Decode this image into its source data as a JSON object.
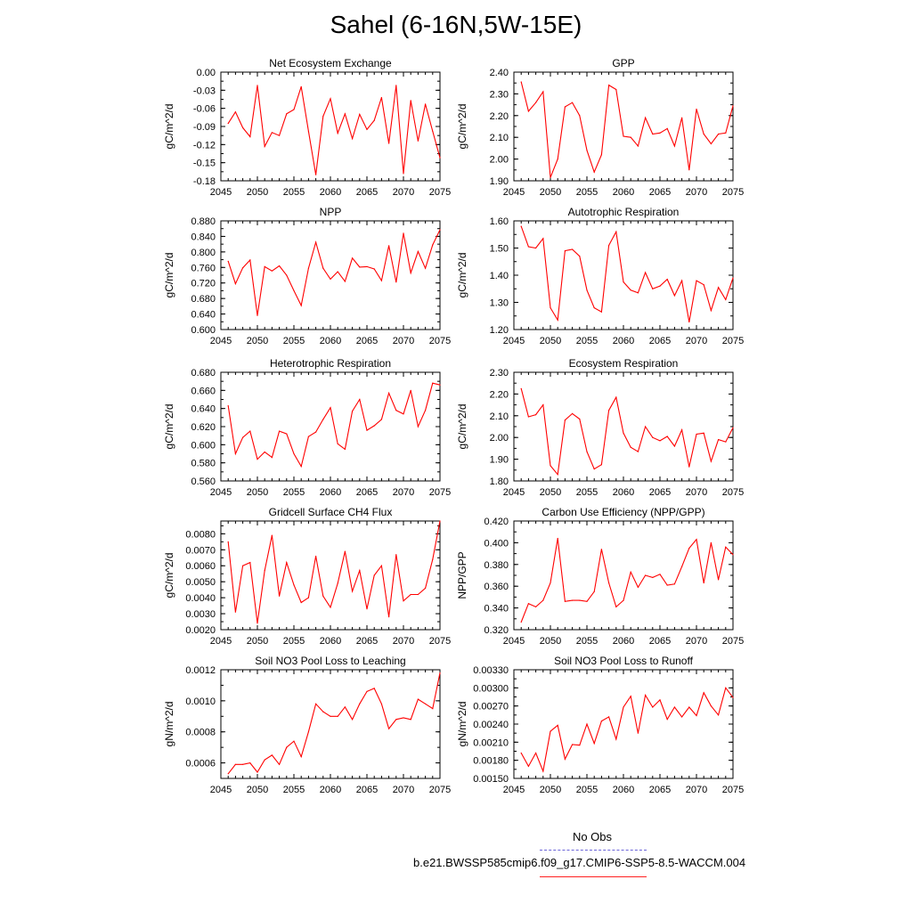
{
  "title": "Sahel (6-16N,5W-15E)",
  "legend": {
    "obs_label": "No Obs",
    "model_label": "b.e21.BWSSP585cmip6.f09_g17.CMIP6-SSP5-8.5-WACCM.004",
    "obs_color": "#6a64d8",
    "model_color": "#ff0000"
  },
  "chart_data": [
    {
      "type": "line",
      "title": "Net Ecosystem Exchange",
      "ylabel": "gC/m^2/d",
      "xlim": [
        2045,
        2075
      ],
      "xticks": [
        "2045",
        "2050",
        "2055",
        "2060",
        "2065",
        "2070",
        "2075"
      ],
      "ylim": [
        -0.18,
        0.0
      ],
      "yticks": [
        "0.00",
        "-0.03",
        "-0.06",
        "-0.09",
        "-0.12",
        "-0.15",
        "-0.18"
      ],
      "x": [
        2046,
        2047,
        2048,
        2049,
        2050,
        2051,
        2052,
        2053,
        2054,
        2055,
        2056,
        2057,
        2058,
        2059,
        2060,
        2061,
        2062,
        2063,
        2064,
        2065,
        2066,
        2067,
        2068,
        2069,
        2070,
        2071,
        2072,
        2073,
        2074,
        2075
      ],
      "series": [
        {
          "name": "b.e21.BWSSP585cmip6.f09_g17.CMIP6-SSP5-8.5-WACCM.004",
          "values": [
            -0.085,
            -0.066,
            -0.092,
            -0.107,
            -0.022,
            -0.123,
            -0.1,
            -0.105,
            -0.069,
            -0.062,
            -0.024,
            -0.098,
            -0.17,
            -0.073,
            -0.044,
            -0.101,
            -0.069,
            -0.11,
            -0.07,
            -0.095,
            -0.08,
            -0.042,
            -0.118,
            -0.022,
            -0.168,
            -0.047,
            -0.114,
            -0.053,
            -0.098,
            -0.142
          ]
        }
      ]
    },
    {
      "type": "line",
      "title": "GPP",
      "ylabel": "gC/m^2/d",
      "xlim": [
        2045,
        2075
      ],
      "xticks": [
        "2045",
        "2050",
        "2055",
        "2060",
        "2065",
        "2070",
        "2075"
      ],
      "ylim": [
        1.9,
        2.4
      ],
      "yticks": [
        "2.40",
        "2.30",
        "2.20",
        "2.10",
        "2.00",
        "1.90"
      ],
      "x": [
        2046,
        2047,
        2048,
        2049,
        2050,
        2051,
        2052,
        2053,
        2054,
        2055,
        2056,
        2057,
        2058,
        2059,
        2060,
        2061,
        2062,
        2063,
        2064,
        2065,
        2066,
        2067,
        2068,
        2069,
        2070,
        2071,
        2072,
        2073,
        2074,
        2075
      ],
      "series": [
        {
          "name": "b.e21.BWSSP585cmip6.f09_g17.CMIP6-SSP5-8.5-WACCM.004",
          "values": [
            2.355,
            2.22,
            2.26,
            2.31,
            1.915,
            2.0,
            2.24,
            2.26,
            2.2,
            2.04,
            1.94,
            2.02,
            2.34,
            2.32,
            2.105,
            2.1,
            2.06,
            2.19,
            2.115,
            2.12,
            2.14,
            2.06,
            2.19,
            1.95,
            2.23,
            2.115,
            2.07,
            2.115,
            2.12,
            2.245
          ]
        }
      ]
    },
    {
      "type": "line",
      "title": "NPP",
      "ylabel": "gC/m^2/d",
      "xlim": [
        2045,
        2075
      ],
      "xticks": [
        "2045",
        "2050",
        "2055",
        "2060",
        "2065",
        "2070",
        "2075"
      ],
      "ylim": [
        0.6,
        0.88
      ],
      "yticks": [
        "0.880",
        "0.840",
        "0.800",
        "0.760",
        "0.720",
        "0.680",
        "0.640",
        "0.600"
      ],
      "x": [
        2046,
        2047,
        2048,
        2049,
        2050,
        2051,
        2052,
        2053,
        2054,
        2055,
        2056,
        2057,
        2058,
        2059,
        2060,
        2061,
        2062,
        2063,
        2064,
        2065,
        2066,
        2067,
        2068,
        2069,
        2070,
        2071,
        2072,
        2073,
        2074,
        2075
      ],
      "series": [
        {
          "name": "b.e21.BWSSP585cmip6.f09_g17.CMIP6-SSP5-8.5-WACCM.004",
          "values": [
            0.776,
            0.718,
            0.759,
            0.779,
            0.636,
            0.762,
            0.751,
            0.764,
            0.74,
            0.7,
            0.662,
            0.758,
            0.825,
            0.758,
            0.73,
            0.749,
            0.724,
            0.784,
            0.761,
            0.762,
            0.756,
            0.726,
            0.816,
            0.722,
            0.848,
            0.746,
            0.801,
            0.758,
            0.818,
            0.857
          ]
        }
      ]
    },
    {
      "type": "line",
      "title": "Autotrophic Respiration",
      "ylabel": "gC/m^2/d",
      "xlim": [
        2045,
        2075
      ],
      "xticks": [
        "2045",
        "2050",
        "2055",
        "2060",
        "2065",
        "2070",
        "2075"
      ],
      "ylim": [
        1.2,
        1.6
      ],
      "yticks": [
        "1.60",
        "1.50",
        "1.40",
        "1.30",
        "1.20"
      ],
      "x": [
        2046,
        2047,
        2048,
        2049,
        2050,
        2051,
        2052,
        2053,
        2054,
        2055,
        2056,
        2057,
        2058,
        2059,
        2060,
        2061,
        2062,
        2063,
        2064,
        2065,
        2066,
        2067,
        2068,
        2069,
        2070,
        2071,
        2072,
        2073,
        2074,
        2075
      ],
      "series": [
        {
          "name": "b.e21.BWSSP585cmip6.f09_g17.CMIP6-SSP5-8.5-WACCM.004",
          "values": [
            1.58,
            1.505,
            1.5,
            1.535,
            1.28,
            1.235,
            1.49,
            1.495,
            1.47,
            1.345,
            1.28,
            1.265,
            1.51,
            1.56,
            1.375,
            1.345,
            1.335,
            1.41,
            1.35,
            1.36,
            1.385,
            1.325,
            1.38,
            1.228,
            1.38,
            1.365,
            1.27,
            1.355,
            1.31,
            1.39
          ]
        }
      ]
    },
    {
      "type": "line",
      "title": "Heterotrophic Respiration",
      "ylabel": "gC/m^2/d",
      "xlim": [
        2045,
        2075
      ],
      "xticks": [
        "2045",
        "2050",
        "2055",
        "2060",
        "2065",
        "2070",
        "2075"
      ],
      "ylim": [
        0.56,
        0.68
      ],
      "yticks": [
        "0.680",
        "0.660",
        "0.640",
        "0.620",
        "0.600",
        "0.580",
        "0.560"
      ],
      "x": [
        2046,
        2047,
        2048,
        2049,
        2050,
        2051,
        2052,
        2053,
        2054,
        2055,
        2056,
        2057,
        2058,
        2059,
        2060,
        2061,
        2062,
        2063,
        2064,
        2065,
        2066,
        2067,
        2068,
        2069,
        2070,
        2071,
        2072,
        2073,
        2074,
        2075
      ],
      "series": [
        {
          "name": "b.e21.BWSSP585cmip6.f09_g17.CMIP6-SSP5-8.5-WACCM.004",
          "values": [
            0.643,
            0.59,
            0.608,
            0.615,
            0.584,
            0.592,
            0.586,
            0.615,
            0.612,
            0.59,
            0.576,
            0.609,
            0.614,
            0.628,
            0.641,
            0.601,
            0.595,
            0.637,
            0.65,
            0.616,
            0.621,
            0.628,
            0.657,
            0.638,
            0.634,
            0.66,
            0.62,
            0.638,
            0.668,
            0.666
          ]
        }
      ]
    },
    {
      "type": "line",
      "title": "Ecosystem Respiration",
      "ylabel": "gC/m^2/d",
      "xlim": [
        2045,
        2075
      ],
      "xticks": [
        "2045",
        "2050",
        "2055",
        "2060",
        "2065",
        "2070",
        "2075"
      ],
      "ylim": [
        1.8,
        2.3
      ],
      "yticks": [
        "2.30",
        "2.20",
        "2.10",
        "2.00",
        "1.90",
        "1.80"
      ],
      "x": [
        2046,
        2047,
        2048,
        2049,
        2050,
        2051,
        2052,
        2053,
        2054,
        2055,
        2056,
        2057,
        2058,
        2059,
        2060,
        2061,
        2062,
        2063,
        2064,
        2065,
        2066,
        2067,
        2068,
        2069,
        2070,
        2071,
        2072,
        2073,
        2074,
        2075
      ],
      "series": [
        {
          "name": "b.e21.BWSSP585cmip6.f09_g17.CMIP6-SSP5-8.5-WACCM.004",
          "values": [
            2.225,
            2.095,
            2.105,
            2.15,
            1.87,
            1.83,
            2.08,
            2.11,
            2.085,
            1.935,
            1.855,
            1.875,
            2.125,
            2.185,
            2.02,
            1.955,
            1.935,
            2.05,
            2.0,
            1.985,
            2.005,
            1.96,
            2.035,
            1.865,
            2.015,
            2.02,
            1.89,
            1.99,
            1.98,
            2.045
          ]
        }
      ]
    },
    {
      "type": "line",
      "title": "Gridcell Surface CH4 Flux",
      "ylabel": "gC/m^2/d",
      "xlim": [
        2045,
        2075
      ],
      "xticks": [
        "2045",
        "2050",
        "2055",
        "2060",
        "2065",
        "2070",
        "2075"
      ],
      "ylim": [
        0.002,
        0.0088
      ],
      "yticks": [
        "0.0080",
        "0.0070",
        "0.0060",
        "0.0050",
        "0.0040",
        "0.0030",
        "0.0020"
      ],
      "x": [
        2046,
        2047,
        2048,
        2049,
        2050,
        2051,
        2052,
        2053,
        2054,
        2055,
        2056,
        2057,
        2058,
        2059,
        2060,
        2061,
        2062,
        2063,
        2064,
        2065,
        2066,
        2067,
        2068,
        2069,
        2070,
        2071,
        2072,
        2073,
        2074,
        2075
      ],
      "series": [
        {
          "name": "b.e21.BWSSP585cmip6.f09_g17.CMIP6-SSP5-8.5-WACCM.004",
          "values": [
            0.0075,
            0.0031,
            0.006,
            0.0062,
            0.0024,
            0.0057,
            0.0079,
            0.0041,
            0.0062,
            0.0048,
            0.0037,
            0.004,
            0.0066,
            0.0041,
            0.0034,
            0.0049,
            0.0069,
            0.0044,
            0.0057,
            0.0033,
            0.0054,
            0.006,
            0.0028,
            0.0067,
            0.0038,
            0.0042,
            0.0042,
            0.0046,
            0.0064,
            0.0088
          ]
        }
      ]
    },
    {
      "type": "line",
      "title": "Carbon Use Efficiency (NPP/GPP)",
      "ylabel": "NPP/GPP",
      "xlim": [
        2045,
        2075
      ],
      "xticks": [
        "2045",
        "2050",
        "2055",
        "2060",
        "2065",
        "2070",
        "2075"
      ],
      "ylim": [
        0.32,
        0.42
      ],
      "yticks": [
        "0.420",
        "0.400",
        "0.380",
        "0.360",
        "0.340",
        "0.320"
      ],
      "x": [
        2046,
        2047,
        2048,
        2049,
        2050,
        2051,
        2052,
        2053,
        2054,
        2055,
        2056,
        2057,
        2058,
        2059,
        2060,
        2061,
        2062,
        2063,
        2064,
        2065,
        2066,
        2067,
        2068,
        2069,
        2070,
        2071,
        2072,
        2073,
        2074,
        2075
      ],
      "series": [
        {
          "name": "b.e21.BWSSP585cmip6.f09_g17.CMIP6-SSP5-8.5-WACCM.004",
          "values": [
            0.327,
            0.344,
            0.341,
            0.347,
            0.363,
            0.404,
            0.346,
            0.347,
            0.347,
            0.346,
            0.355,
            0.394,
            0.363,
            0.341,
            0.347,
            0.373,
            0.359,
            0.37,
            0.368,
            0.371,
            0.361,
            0.362,
            0.378,
            0.395,
            0.403,
            0.363,
            0.4,
            0.366,
            0.396,
            0.389
          ]
        }
      ]
    },
    {
      "type": "line",
      "title": "Soil NO3 Pool Loss to Leaching",
      "ylabel": "gN/m^2/d",
      "xlim": [
        2045,
        2075
      ],
      "xticks": [
        "2045",
        "2050",
        "2055",
        "2060",
        "2065",
        "2070",
        "2075"
      ],
      "ylim": [
        0.0005,
        0.0012
      ],
      "yticks": [
        "0.0012",
        "0.0010",
        "0.0008",
        "0.0006"
      ],
      "x": [
        2046,
        2047,
        2048,
        2049,
        2050,
        2051,
        2052,
        2053,
        2054,
        2055,
        2056,
        2057,
        2058,
        2059,
        2060,
        2061,
        2062,
        2063,
        2064,
        2065,
        2066,
        2067,
        2068,
        2069,
        2070,
        2071,
        2072,
        2073,
        2074,
        2075
      ],
      "series": [
        {
          "name": "b.e21.BWSSP585cmip6.f09_g17.CMIP6-SSP5-8.5-WACCM.004",
          "values": [
            0.00053,
            0.00059,
            0.00059,
            0.0006,
            0.00054,
            0.00062,
            0.00065,
            0.00059,
            0.0007,
            0.00074,
            0.00064,
            0.0008,
            0.00098,
            0.00093,
            0.0009,
            0.0009,
            0.00096,
            0.00088,
            0.00098,
            0.00106,
            0.00108,
            0.00098,
            0.00082,
            0.00088,
            0.00089,
            0.00088,
            0.00101,
            0.00098,
            0.00095,
            0.00118
          ]
        }
      ]
    },
    {
      "type": "line",
      "title": "Soil NO3 Pool Loss to Runoff",
      "ylabel": "gN/m^2/d",
      "xlim": [
        2045,
        2075
      ],
      "xticks": [
        "2045",
        "2050",
        "2055",
        "2060",
        "2065",
        "2070",
        "2075"
      ],
      "ylim": [
        0.0015,
        0.0033
      ],
      "yticks": [
        "0.00330",
        "0.00300",
        "0.00270",
        "0.00240",
        "0.00210",
        "0.00180",
        "0.00150"
      ],
      "x": [
        2046,
        2047,
        2048,
        2049,
        2050,
        2051,
        2052,
        2053,
        2054,
        2055,
        2056,
        2057,
        2058,
        2059,
        2060,
        2061,
        2062,
        2063,
        2064,
        2065,
        2066,
        2067,
        2068,
        2069,
        2070,
        2071,
        2072,
        2073,
        2074,
        2075
      ],
      "series": [
        {
          "name": "b.e21.BWSSP585cmip6.f09_g17.CMIP6-SSP5-8.5-WACCM.004",
          "values": [
            0.00192,
            0.0017,
            0.00192,
            0.00162,
            0.00228,
            0.00238,
            0.00182,
            0.00206,
            0.00205,
            0.0024,
            0.00208,
            0.00245,
            0.00252,
            0.00215,
            0.00268,
            0.00286,
            0.00225,
            0.00288,
            0.00268,
            0.0028,
            0.00248,
            0.00268,
            0.00252,
            0.00268,
            0.00254,
            0.00292,
            0.0027,
            0.00255,
            0.003,
            0.00284
          ]
        }
      ]
    }
  ]
}
